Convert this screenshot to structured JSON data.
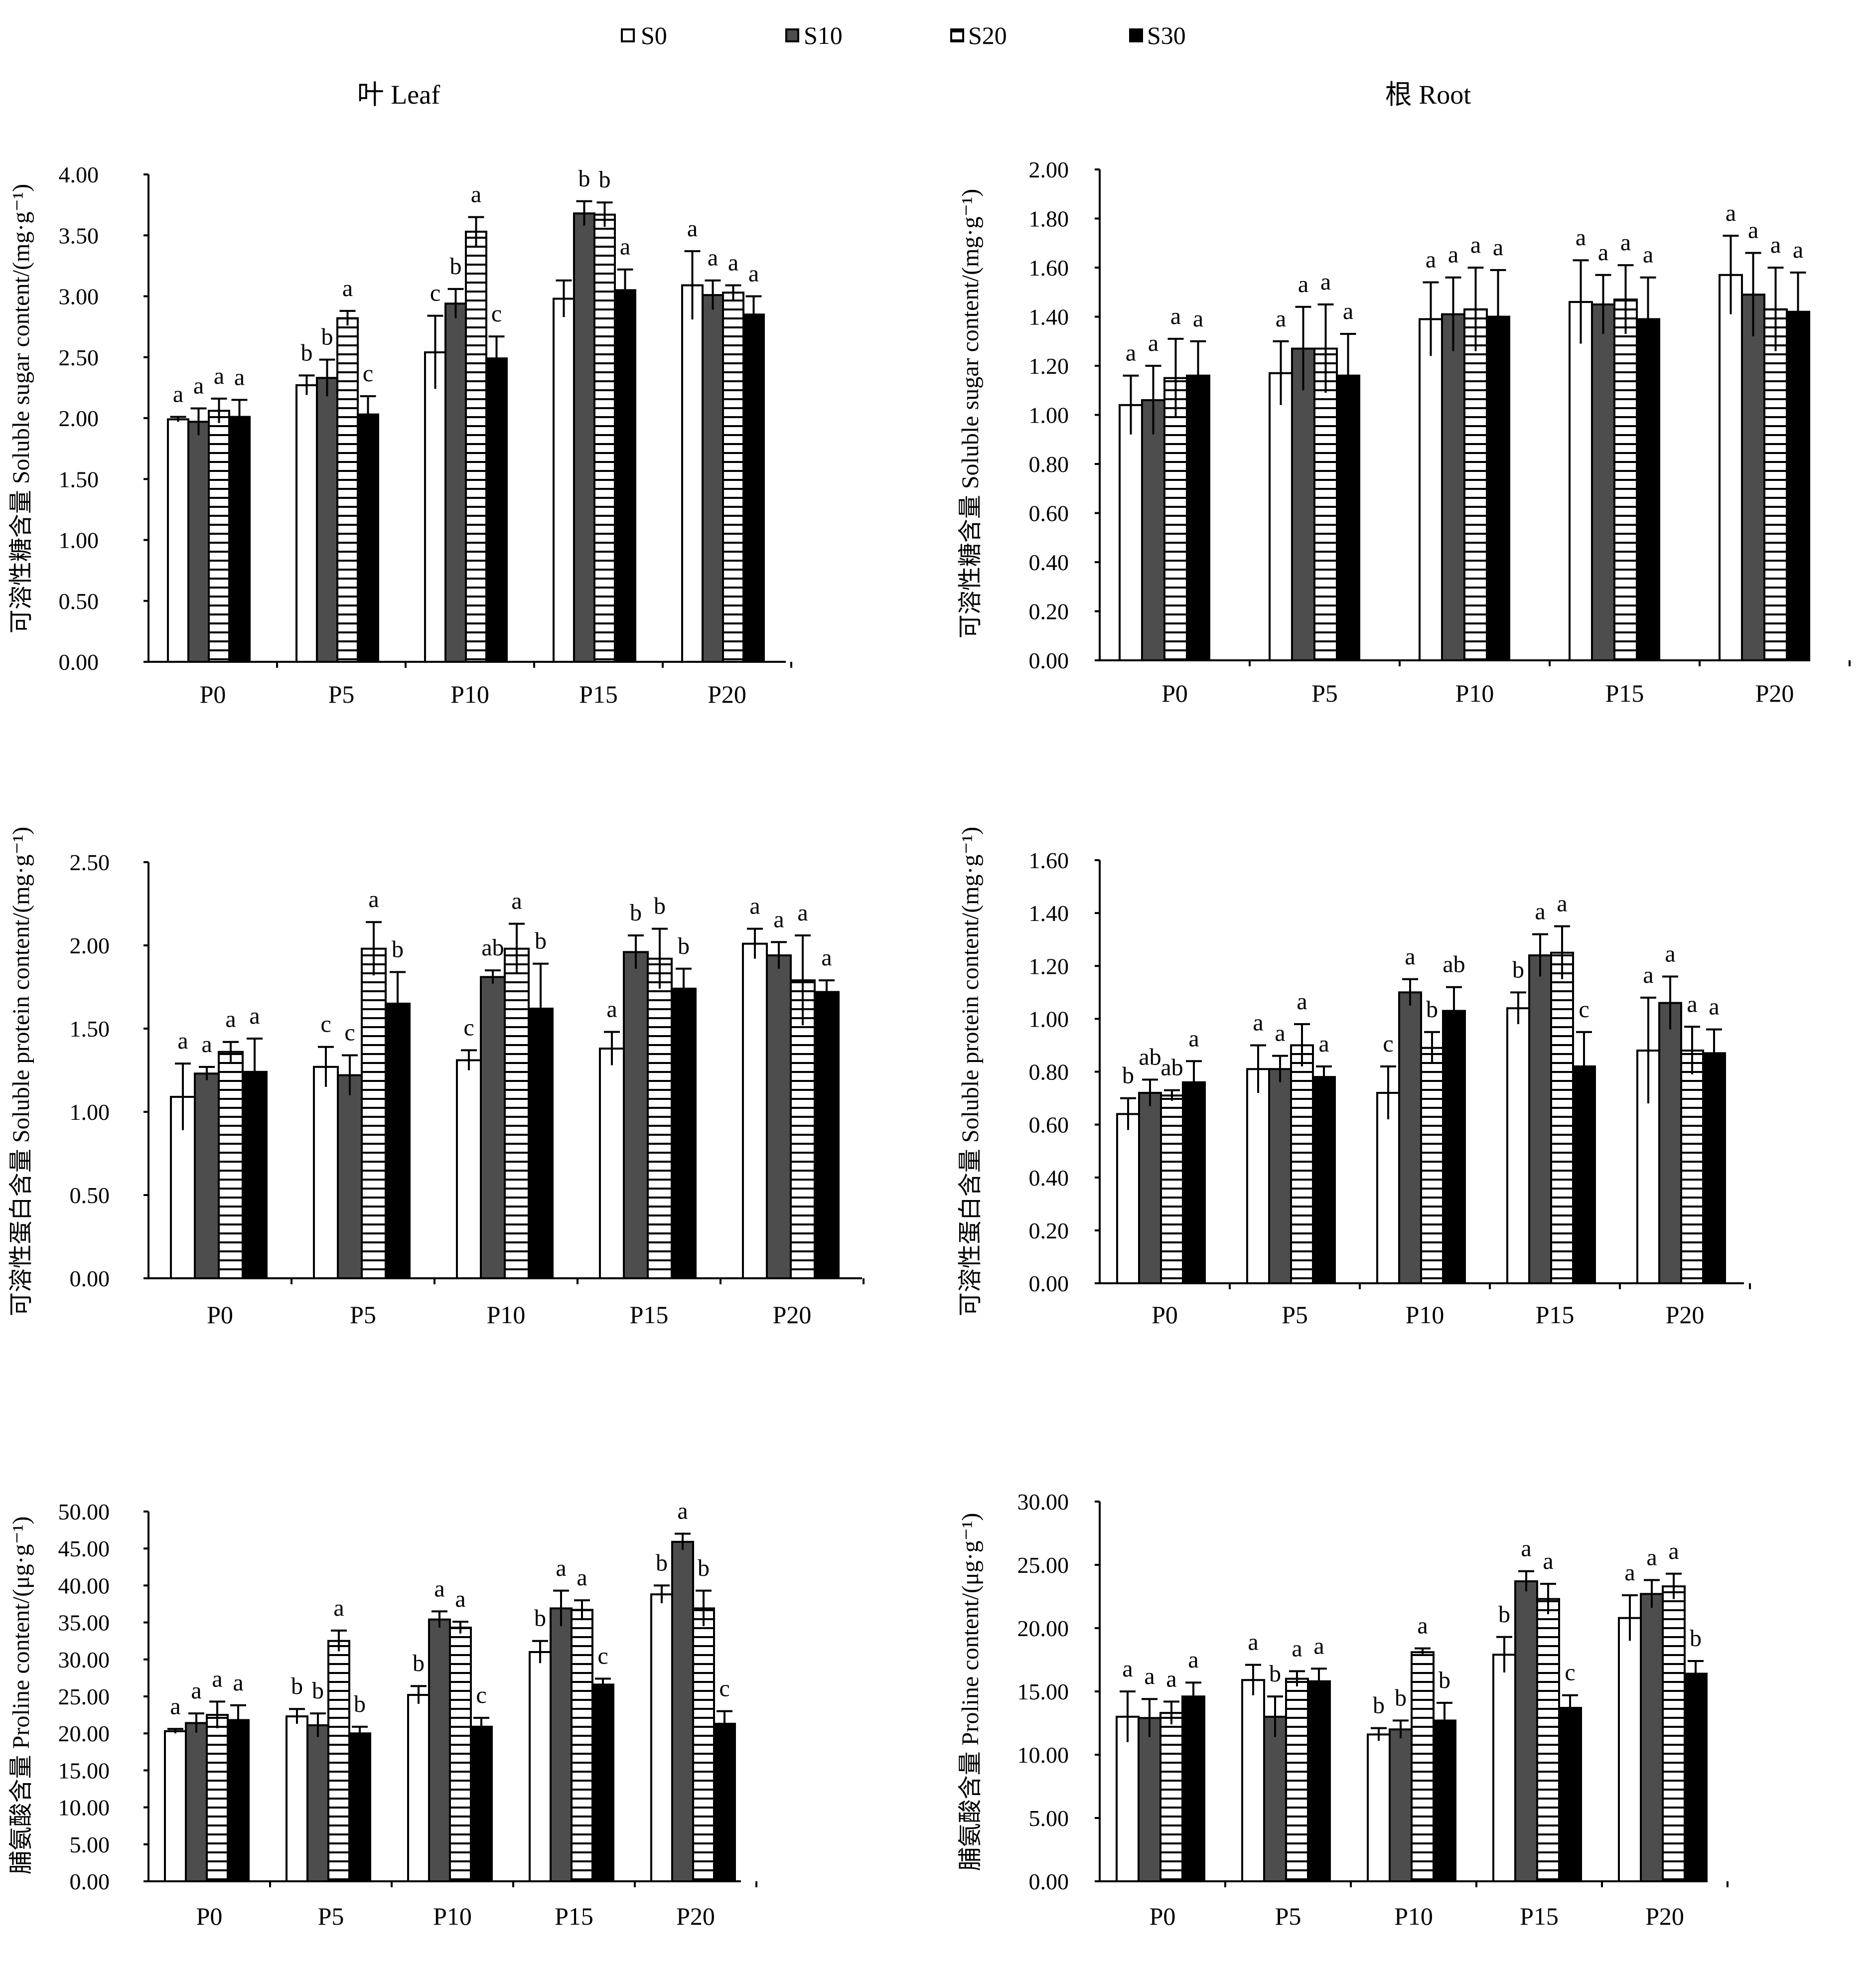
{
  "legend": {
    "items": [
      {
        "label": "S0",
        "style": "open"
      },
      {
        "label": "S10",
        "style": "dark"
      },
      {
        "label": "S20",
        "style": "hatched"
      },
      {
        "label": "S30",
        "style": "black"
      }
    ]
  },
  "column_titles": {
    "leaf": "叶  Leaf",
    "root": "根  Root"
  },
  "colors": {
    "s0_fill": "#ffffff",
    "s10_fill": "#4d4d4d",
    "s20_hatch": "#000000",
    "s30_fill": "#000000",
    "stroke": "#000000"
  },
  "chart_data": [
    {
      "id": "leaf-sugar",
      "type": "bar",
      "organ": "Leaf",
      "ylabel": "可溶性糖含量  Soluble sugar content/(mg·g⁻¹)",
      "ylim": [
        0,
        4
      ],
      "ytick_step": 0.5,
      "yticks": [
        "0.00",
        "0.50",
        "1.00",
        "1.50",
        "2.00",
        "2.50",
        "3.00",
        "3.50",
        "4.00"
      ],
      "categories": [
        "P0",
        "P5",
        "P10",
        "P15",
        "P20"
      ],
      "series": [
        {
          "name": "S0",
          "values": [
            1.99,
            2.27,
            2.54,
            2.98,
            3.09
          ],
          "errors": [
            0.02,
            0.08,
            0.3,
            0.15,
            0.28
          ],
          "letters": [
            "a",
            "b",
            "c",
            "",
            "a"
          ]
        },
        {
          "name": "S10",
          "values": [
            1.97,
            2.33,
            2.94,
            3.68,
            3.01
          ],
          "errors": [
            0.11,
            0.15,
            0.12,
            0.1,
            0.12
          ],
          "letters": [
            "a",
            "b",
            "b",
            "b",
            "a"
          ]
        },
        {
          "name": "S20",
          "values": [
            2.06,
            2.82,
            3.53,
            3.67,
            3.03
          ],
          "errors": [
            0.1,
            0.06,
            0.12,
            0.1,
            0.06
          ],
          "letters": [
            "a",
            "a",
            "a",
            "b",
            "a"
          ]
        },
        {
          "name": "S30",
          "values": [
            2.01,
            2.03,
            2.49,
            3.05,
            2.85
          ],
          "errors": [
            0.14,
            0.15,
            0.18,
            0.17,
            0.15
          ],
          "letters": [
            "a",
            "c",
            "c",
            "a",
            "a"
          ]
        }
      ]
    },
    {
      "id": "root-sugar",
      "type": "bar",
      "organ": "Root",
      "ylabel": "可溶性糖含量  Soluble sugar content/(mg·g⁻¹)",
      "ylim": [
        0,
        2
      ],
      "ytick_step": 0.2,
      "yticks": [
        "0.00",
        "0.20",
        "0.40",
        "0.60",
        "0.80",
        "1.00",
        "1.20",
        "1.40",
        "1.60",
        "1.80",
        "2.00"
      ],
      "categories": [
        "P0",
        "P5",
        "P10",
        "P15",
        "P20"
      ],
      "series": [
        {
          "name": "S0",
          "values": [
            1.04,
            1.17,
            1.39,
            1.46,
            1.57
          ],
          "errors": [
            0.12,
            0.13,
            0.15,
            0.17,
            0.16
          ],
          "letters": [
            "a",
            "a",
            "a",
            "a",
            "a"
          ]
        },
        {
          "name": "S10",
          "values": [
            1.06,
            1.27,
            1.41,
            1.45,
            1.49
          ],
          "errors": [
            0.14,
            0.17,
            0.15,
            0.12,
            0.17
          ],
          "letters": [
            "a",
            "a",
            "a",
            "a",
            "a"
          ]
        },
        {
          "name": "S20",
          "values": [
            1.15,
            1.27,
            1.43,
            1.47,
            1.43
          ],
          "errors": [
            0.16,
            0.18,
            0.17,
            0.14,
            0.17
          ],
          "letters": [
            "a",
            "a",
            "a",
            "a",
            "a"
          ]
        },
        {
          "name": "S30",
          "values": [
            1.16,
            1.16,
            1.4,
            1.39,
            1.42
          ],
          "errors": [
            0.14,
            0.17,
            0.19,
            0.17,
            0.16
          ],
          "letters": [
            "a",
            "a",
            "a",
            "a",
            "a"
          ]
        }
      ]
    },
    {
      "id": "leaf-protein",
      "type": "bar",
      "organ": "Leaf",
      "ylabel": "可溶性蛋白含量  Soluble protein content/(mg·g⁻¹)",
      "ylim": [
        0,
        2.5
      ],
      "ytick_step": 0.5,
      "yticks": [
        "0.00",
        "0.50",
        "1.00",
        "1.50",
        "2.00",
        "2.50"
      ],
      "categories": [
        "P0",
        "P5",
        "P10",
        "P15",
        "P20"
      ],
      "series": [
        {
          "name": "S0",
          "values": [
            1.09,
            1.27,
            1.31,
            1.38,
            2.01
          ],
          "errors": [
            0.2,
            0.12,
            0.06,
            0.1,
            0.09
          ],
          "letters": [
            "a",
            "c",
            "c",
            "a",
            "a"
          ]
        },
        {
          "name": "S10",
          "values": [
            1.23,
            1.22,
            1.81,
            1.96,
            1.94
          ],
          "errors": [
            0.04,
            0.12,
            0.04,
            0.1,
            0.08
          ],
          "letters": [
            "a",
            "c",
            "ab",
            "b",
            "a"
          ]
        },
        {
          "name": "S20",
          "values": [
            1.36,
            1.98,
            1.98,
            1.92,
            1.79
          ],
          "errors": [
            0.06,
            0.16,
            0.15,
            0.18,
            0.27
          ],
          "letters": [
            "a",
            "a",
            "a",
            "b",
            "a"
          ]
        },
        {
          "name": "S30",
          "values": [
            1.24,
            1.65,
            1.62,
            1.74,
            1.72
          ],
          "errors": [
            0.2,
            0.19,
            0.27,
            0.12,
            0.07
          ],
          "letters": [
            "a",
            "b",
            "b",
            "b",
            "a"
          ]
        }
      ]
    },
    {
      "id": "root-protein",
      "type": "bar",
      "organ": "Root",
      "ylabel": "可溶性蛋白含量  Soluble protein content/(mg·g⁻¹)",
      "ylim": [
        0,
        1.6
      ],
      "ytick_step": 0.2,
      "yticks": [
        "0.00",
        "0.20",
        "0.40",
        "0.60",
        "0.80",
        "1.00",
        "1.20",
        "1.40",
        "1.60"
      ],
      "categories": [
        "P0",
        "P5",
        "P10",
        "P15",
        "P20"
      ],
      "series": [
        {
          "name": "S0",
          "values": [
            0.64,
            0.81,
            0.72,
            1.04,
            0.88
          ],
          "errors": [
            0.06,
            0.09,
            0.1,
            0.06,
            0.2
          ],
          "letters": [
            "b",
            "a",
            "c",
            "b",
            "a"
          ]
        },
        {
          "name": "S10",
          "values": [
            0.72,
            0.81,
            1.1,
            1.24,
            1.06
          ],
          "errors": [
            0.05,
            0.05,
            0.05,
            0.08,
            0.1
          ],
          "letters": [
            "ab",
            "a",
            "a",
            "a",
            "a"
          ]
        },
        {
          "name": "S20",
          "values": [
            0.71,
            0.9,
            0.89,
            1.25,
            0.88
          ],
          "errors": [
            0.02,
            0.08,
            0.06,
            0.1,
            0.09
          ],
          "letters": [
            "ab",
            "a",
            "b",
            "a",
            "a"
          ]
        },
        {
          "name": "S30",
          "values": [
            0.76,
            0.78,
            1.03,
            0.82,
            0.87
          ],
          "errors": [
            0.08,
            0.04,
            0.09,
            0.13,
            0.09
          ],
          "letters": [
            "a",
            "a",
            "ab",
            "c",
            "a"
          ]
        }
      ]
    },
    {
      "id": "leaf-proline",
      "type": "bar",
      "organ": "Leaf",
      "ylabel": "脯氨酸含量  Proline content/(μg·g⁻¹)",
      "ylim": [
        0,
        50
      ],
      "ytick_step": 5,
      "yticks": [
        "0.00",
        "5.00",
        "10.00",
        "15.00",
        "20.00",
        "25.00",
        "30.00",
        "35.00",
        "40.00",
        "45.00",
        "50.00"
      ],
      "categories": [
        "P0",
        "P5",
        "P10",
        "P15",
        "P20"
      ],
      "series": [
        {
          "name": "S0",
          "values": [
            20.3,
            22.3,
            25.2,
            31.0,
            38.8
          ],
          "errors": [
            0.3,
            1.0,
            1.2,
            1.5,
            1.2
          ],
          "letters": [
            "a",
            "b",
            "b",
            "b",
            "b"
          ]
        },
        {
          "name": "S10",
          "values": [
            21.4,
            21.1,
            35.4,
            36.9,
            45.9
          ],
          "errors": [
            1.3,
            1.6,
            1.1,
            2.4,
            1.1
          ],
          "letters": [
            "a",
            "b",
            "a",
            "a",
            "a"
          ]
        },
        {
          "name": "S20",
          "values": [
            22.5,
            32.5,
            34.3,
            36.7,
            36.9
          ],
          "errors": [
            1.8,
            1.4,
            0.8,
            1.3,
            2.4
          ],
          "letters": [
            "a",
            "a",
            "a",
            "a",
            "b"
          ]
        },
        {
          "name": "S30",
          "values": [
            21.8,
            20.0,
            20.9,
            26.6,
            21.3
          ],
          "errors": [
            2.0,
            0.9,
            1.2,
            0.8,
            1.7
          ],
          "letters": [
            "a",
            "b",
            "c",
            "c",
            "c"
          ]
        }
      ]
    },
    {
      "id": "root-proline",
      "type": "bar",
      "organ": "Root",
      "ylabel": "脯氨酸含量  Proline content/(μg·g⁻¹)",
      "ylim": [
        0,
        30
      ],
      "ytick_step": 5,
      "yticks": [
        "0.00",
        "5.00",
        "10.00",
        "15.00",
        "20.00",
        "25.00",
        "30.00"
      ],
      "categories": [
        "P0",
        "P5",
        "P10",
        "P15",
        "P20"
      ],
      "series": [
        {
          "name": "S0",
          "values": [
            13.0,
            15.9,
            11.6,
            17.9,
            20.8
          ],
          "errors": [
            2.0,
            1.2,
            0.5,
            1.4,
            1.8
          ],
          "letters": [
            "a",
            "a",
            "b",
            "b",
            "a"
          ]
        },
        {
          "name": "S10",
          "values": [
            12.9,
            13.0,
            12.0,
            23.7,
            22.7
          ],
          "errors": [
            1.5,
            1.6,
            0.7,
            0.8,
            1.1
          ],
          "letters": [
            "a",
            "b",
            "b",
            "a",
            "a"
          ]
        },
        {
          "name": "S20",
          "values": [
            13.3,
            16.0,
            18.1,
            22.3,
            23.3
          ],
          "errors": [
            0.9,
            0.6,
            0.3,
            1.2,
            1.0
          ],
          "letters": [
            "a",
            "a",
            "a",
            "a",
            "a"
          ]
        },
        {
          "name": "S30",
          "values": [
            14.6,
            15.8,
            12.7,
            13.7,
            16.4
          ],
          "errors": [
            1.1,
            1.0,
            1.4,
            1.0,
            1.0
          ],
          "letters": [
            "a",
            "a",
            "b",
            "c",
            "b"
          ]
        }
      ]
    }
  ]
}
